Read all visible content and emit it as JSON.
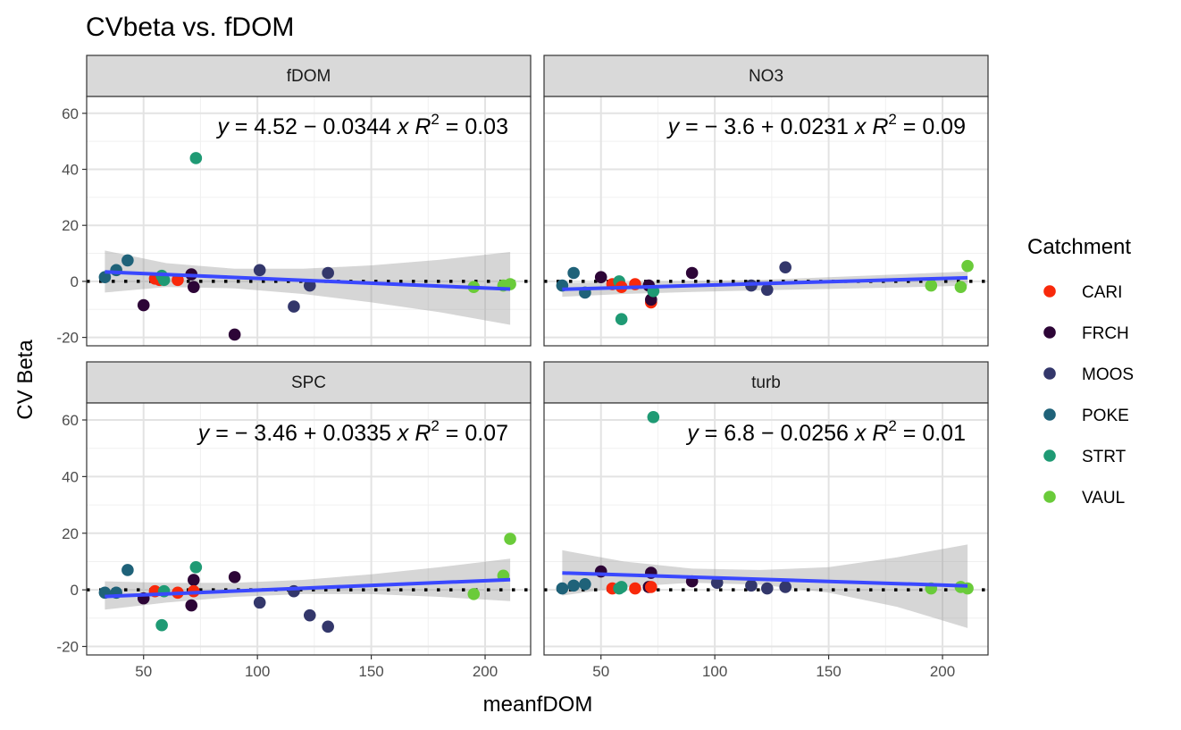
{
  "chart_data": {
    "type": "scatter",
    "title": "CVbeta vs. fDOM",
    "xlabel": "meanfDOM",
    "ylabel": "CV Beta",
    "xlim": [
      25,
      220
    ],
    "ylim": [
      -23,
      66
    ],
    "x_ticks": [
      50,
      100,
      150,
      200
    ],
    "y_ticks": [
      -20,
      0,
      20,
      40,
      60
    ],
    "grid": true,
    "legend": {
      "title": "Catchment",
      "placement": "right",
      "entries": [
        {
          "name": "CARI",
          "color": "#F8290B"
        },
        {
          "name": "FRCH",
          "color": "#2D0537"
        },
        {
          "name": "MOOS",
          "color": "#33376B"
        },
        {
          "name": "POKE",
          "color": "#1F6279"
        },
        {
          "name": "STRT",
          "color": "#1F9A74"
        },
        {
          "name": "VAUL",
          "color": "#6ACB3A"
        }
      ]
    },
    "facets": [
      {
        "name": "fDOM",
        "equation": {
          "lhs": "y",
          "rhs": "= 4.52 − 0.0344 x",
          "r2_prefix": "R",
          "r2_exp": "2",
          "r2_rhs": "= 0.03"
        },
        "fit": {
          "intercept": 4.52,
          "slope": -0.0344
        },
        "band": {
          "x": [
            33,
            60,
            90,
            120,
            150,
            180,
            211
          ],
          "upper": [
            11,
            6.5,
            4.5,
            4.5,
            5.7,
            7.7,
            10.5
          ],
          "lower": [
            -4,
            -2,
            -2.5,
            -4.5,
            -7.5,
            -11,
            -15.5
          ]
        },
        "points": [
          {
            "x": 33,
            "y": 1.5,
            "c": "POKE"
          },
          {
            "x": 38,
            "y": 4,
            "c": "POKE"
          },
          {
            "x": 43,
            "y": 7.5,
            "c": "POKE"
          },
          {
            "x": 50,
            "y": -8.5,
            "c": "FRCH"
          },
          {
            "x": 55,
            "y": 1,
            "c": "CARI"
          },
          {
            "x": 57,
            "y": 0.5,
            "c": "CARI"
          },
          {
            "x": 58,
            "y": 2,
            "c": "STRT"
          },
          {
            "x": 59,
            "y": 0.5,
            "c": "STRT"
          },
          {
            "x": 65,
            "y": 0.5,
            "c": "CARI"
          },
          {
            "x": 71,
            "y": 2.5,
            "c": "FRCH"
          },
          {
            "x": 72,
            "y": -2,
            "c": "FRCH"
          },
          {
            "x": 73,
            "y": 44,
            "c": "STRT"
          },
          {
            "x": 90,
            "y": -19,
            "c": "FRCH"
          },
          {
            "x": 101,
            "y": 4,
            "c": "MOOS"
          },
          {
            "x": 116,
            "y": -9,
            "c": "MOOS"
          },
          {
            "x": 123,
            "y": -1.5,
            "c": "MOOS"
          },
          {
            "x": 131,
            "y": 3,
            "c": "MOOS"
          },
          {
            "x": 195,
            "y": -2,
            "c": "VAUL"
          },
          {
            "x": 208,
            "y": -1.5,
            "c": "VAUL"
          },
          {
            "x": 211,
            "y": -1,
            "c": "VAUL"
          }
        ]
      },
      {
        "name": "NO3",
        "equation": {
          "lhs": "y",
          "rhs": "= − 3.6 + 0.0231 x",
          "r2_prefix": "R",
          "r2_exp": "2",
          "r2_rhs": "= 0.09"
        },
        "fit": {
          "intercept": -3.6,
          "slope": 0.0231
        },
        "band": {
          "x": [
            33,
            60,
            90,
            120,
            150,
            180,
            211
          ],
          "upper": [
            -0.5,
            -0.3,
            0,
            0.5,
            1.5,
            2.5,
            3.5
          ],
          "lower": [
            -5.5,
            -4.5,
            -3.8,
            -3.2,
            -2.7,
            -2.2,
            -1.5
          ]
        },
        "points": [
          {
            "x": 33,
            "y": -1.5,
            "c": "POKE"
          },
          {
            "x": 38,
            "y": 3,
            "c": "POKE"
          },
          {
            "x": 43,
            "y": -4,
            "c": "POKE"
          },
          {
            "x": 50,
            "y": 1.5,
            "c": "FRCH"
          },
          {
            "x": 55,
            "y": -1,
            "c": "CARI"
          },
          {
            "x": 58,
            "y": 0,
            "c": "STRT"
          },
          {
            "x": 59,
            "y": -2,
            "c": "CARI"
          },
          {
            "x": 59,
            "y": -13.5,
            "c": "STRT"
          },
          {
            "x": 65,
            "y": -1,
            "c": "CARI"
          },
          {
            "x": 71,
            "y": -1.5,
            "c": "FRCH"
          },
          {
            "x": 72,
            "y": -7.5,
            "c": "CARI"
          },
          {
            "x": 72,
            "y": -6.5,
            "c": "FRCH"
          },
          {
            "x": 73,
            "y": -3.5,
            "c": "STRT"
          },
          {
            "x": 90,
            "y": 3,
            "c": "FRCH"
          },
          {
            "x": 116,
            "y": -1.5,
            "c": "MOOS"
          },
          {
            "x": 123,
            "y": -3,
            "c": "MOOS"
          },
          {
            "x": 131,
            "y": 5,
            "c": "MOOS"
          },
          {
            "x": 195,
            "y": -1.5,
            "c": "VAUL"
          },
          {
            "x": 208,
            "y": -2,
            "c": "VAUL"
          },
          {
            "x": 211,
            "y": 5.5,
            "c": "VAUL"
          }
        ]
      },
      {
        "name": "SPC",
        "equation": {
          "lhs": "y",
          "rhs": "= − 3.46 + 0.0335 x",
          "r2_prefix": "R",
          "r2_exp": "2",
          "r2_rhs": "= 0.07"
        },
        "fit": {
          "intercept": -3.46,
          "slope": 0.0335
        },
        "band": {
          "x": [
            33,
            60,
            90,
            120,
            150,
            180,
            211
          ],
          "upper": [
            3,
            2.5,
            2.5,
            3.5,
            5.5,
            8,
            11
          ],
          "lower": [
            -7,
            -4.5,
            -2.5,
            -1.5,
            -1.5,
            -2.5,
            -4
          ]
        },
        "points": [
          {
            "x": 33,
            "y": -1,
            "c": "POKE"
          },
          {
            "x": 38,
            "y": -1,
            "c": "POKE"
          },
          {
            "x": 43,
            "y": 7,
            "c": "POKE"
          },
          {
            "x": 50,
            "y": -3,
            "c": "FRCH"
          },
          {
            "x": 55,
            "y": -0.5,
            "c": "CARI"
          },
          {
            "x": 58,
            "y": -12.5,
            "c": "STRT"
          },
          {
            "x": 59,
            "y": -0.5,
            "c": "STRT"
          },
          {
            "x": 65,
            "y": -1,
            "c": "CARI"
          },
          {
            "x": 71,
            "y": -5.5,
            "c": "FRCH"
          },
          {
            "x": 72,
            "y": 3.5,
            "c": "FRCH"
          },
          {
            "x": 72,
            "y": -0.5,
            "c": "CARI"
          },
          {
            "x": 73,
            "y": 8,
            "c": "STRT"
          },
          {
            "x": 90,
            "y": 4.5,
            "c": "FRCH"
          },
          {
            "x": 101,
            "y": -4.5,
            "c": "MOOS"
          },
          {
            "x": 116,
            "y": -0.5,
            "c": "MOOS"
          },
          {
            "x": 123,
            "y": -9,
            "c": "MOOS"
          },
          {
            "x": 131,
            "y": -13,
            "c": "MOOS"
          },
          {
            "x": 195,
            "y": -1.5,
            "c": "VAUL"
          },
          {
            "x": 208,
            "y": 5,
            "c": "VAUL"
          },
          {
            "x": 211,
            "y": 18,
            "c": "VAUL"
          }
        ]
      },
      {
        "name": "turb",
        "equation": {
          "lhs": "y",
          "rhs": "= 6.8 − 0.0256 x",
          "r2_prefix": "R",
          "r2_exp": "2",
          "r2_rhs": "= 0.01"
        },
        "fit": {
          "intercept": 6.8,
          "slope": -0.0256
        },
        "band": {
          "x": [
            33,
            60,
            90,
            120,
            150,
            180,
            211
          ],
          "upper": [
            14,
            10,
            7.5,
            7,
            8,
            11.5,
            16
          ],
          "lower": [
            -2,
            1,
            2.5,
            1.8,
            -1,
            -6,
            -13.5
          ]
        },
        "points": [
          {
            "x": 33,
            "y": 0.5,
            "c": "POKE"
          },
          {
            "x": 38,
            "y": 1.5,
            "c": "POKE"
          },
          {
            "x": 43,
            "y": 2,
            "c": "POKE"
          },
          {
            "x": 50,
            "y": 6.5,
            "c": "FRCH"
          },
          {
            "x": 55,
            "y": 0.5,
            "c": "CARI"
          },
          {
            "x": 58,
            "y": 0.5,
            "c": "STRT"
          },
          {
            "x": 59,
            "y": 1,
            "c": "STRT"
          },
          {
            "x": 65,
            "y": 0.5,
            "c": "CARI"
          },
          {
            "x": 71,
            "y": 1,
            "c": "FRCH"
          },
          {
            "x": 72,
            "y": 6,
            "c": "FRCH"
          },
          {
            "x": 72,
            "y": 1,
            "c": "CARI"
          },
          {
            "x": 73,
            "y": 61,
            "c": "STRT"
          },
          {
            "x": 90,
            "y": 3,
            "c": "FRCH"
          },
          {
            "x": 101,
            "y": 2.5,
            "c": "MOOS"
          },
          {
            "x": 116,
            "y": 1.5,
            "c": "MOOS"
          },
          {
            "x": 123,
            "y": 0.5,
            "c": "MOOS"
          },
          {
            "x": 131,
            "y": 1,
            "c": "MOOS"
          },
          {
            "x": 195,
            "y": 0.5,
            "c": "VAUL"
          },
          {
            "x": 208,
            "y": 1,
            "c": "VAUL"
          },
          {
            "x": 211,
            "y": 0.5,
            "c": "VAUL"
          }
        ]
      }
    ]
  }
}
